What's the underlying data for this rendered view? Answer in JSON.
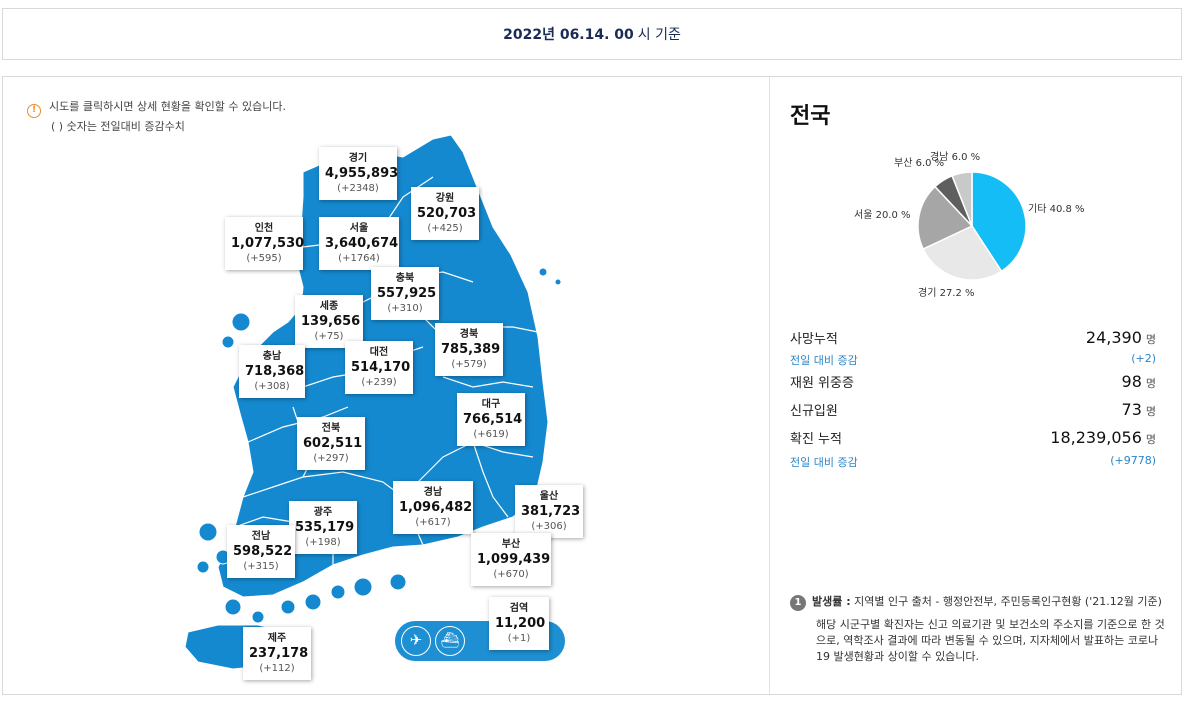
{
  "date_bar": {
    "date": "2022년 06.14. 00",
    "suffix": "시 기준"
  },
  "notice": {
    "line1": "시도를 클릭하시면 상세 현황을 확인할 수 있습니다.",
    "line2": "( ) 숫자는 전일대비 증감수치"
  },
  "regions": [
    {
      "name": "경기",
      "value": "4,955,893",
      "inc": "(+2348)"
    },
    {
      "name": "강원",
      "value": "520,703",
      "inc": "(+425)"
    },
    {
      "name": "인천",
      "value": "1,077,530",
      "inc": "(+595)"
    },
    {
      "name": "서울",
      "value": "3,640,674",
      "inc": "(+1764)"
    },
    {
      "name": "충북",
      "value": "557,925",
      "inc": "(+310)"
    },
    {
      "name": "세종",
      "value": "139,656",
      "inc": "(+75)"
    },
    {
      "name": "경북",
      "value": "785,389",
      "inc": "(+579)"
    },
    {
      "name": "충남",
      "value": "718,368",
      "inc": "(+308)"
    },
    {
      "name": "대전",
      "value": "514,170",
      "inc": "(+239)"
    },
    {
      "name": "대구",
      "value": "766,514",
      "inc": "(+619)"
    },
    {
      "name": "전북",
      "value": "602,511",
      "inc": "(+297)"
    },
    {
      "name": "경남",
      "value": "1,096,482",
      "inc": "(+617)"
    },
    {
      "name": "울산",
      "value": "381,723",
      "inc": "(+306)"
    },
    {
      "name": "광주",
      "value": "535,179",
      "inc": "(+198)"
    },
    {
      "name": "전남",
      "value": "598,522",
      "inc": "(+315)"
    },
    {
      "name": "부산",
      "value": "1,099,439",
      "inc": "(+670)"
    },
    {
      "name": "검역",
      "value": "11,200",
      "inc": "(+1)"
    },
    {
      "name": "제주",
      "value": "237,178",
      "inc": "(+112)"
    }
  ],
  "icons": {
    "airplane": "airplane-icon",
    "ship": "ship-icon"
  },
  "right": {
    "title": "전국",
    "pie": [
      {
        "label": "기타 40.8 %",
        "value": 40.8,
        "color": "#14bdf5"
      },
      {
        "label": "경기 27.2 %",
        "value": 27.2,
        "color": "#e8e8e8"
      },
      {
        "label": "서울 20.0 %",
        "value": 20.0,
        "color": "#a6a6a6"
      },
      {
        "label": "부산 6.0 %",
        "value": 6.0,
        "color": "#5f5f5f"
      },
      {
        "label": "경남 6.0 %",
        "value": 6.0,
        "color": "#c9c9c9"
      }
    ],
    "stats": {
      "deaths_label": "사망누적",
      "deaths_value": "24,390",
      "unit": "명",
      "deaths_sub_label": "전일 대비 증감",
      "deaths_sub_value": "(+2)",
      "hospital_label": "재원 위중증",
      "hospital_value": "98",
      "admit_label": "신규입원",
      "admit_value": "73",
      "confirmed_label": "확진 누적",
      "confirmed_value": "18,239,056",
      "confirmed_sub_label": "전일 대비 증감",
      "confirmed_sub_value": "(+9778)"
    },
    "footnote": {
      "num": "1",
      "title": "발생률 :",
      "text": " 지역별 인구 출처 - 행정안전부, 주민등록인구현황 ('21.12월 기준)",
      "desc": "해당 시군구별 확진자는 신고 의료기관 및 보건소의 주소지를 기준으로 한 것으로, 역학조사 결과에 따라 변동될 수 있으며, 지자체에서 발표하는 코로나19 발생현황과 상이할 수 있습니다."
    }
  }
}
